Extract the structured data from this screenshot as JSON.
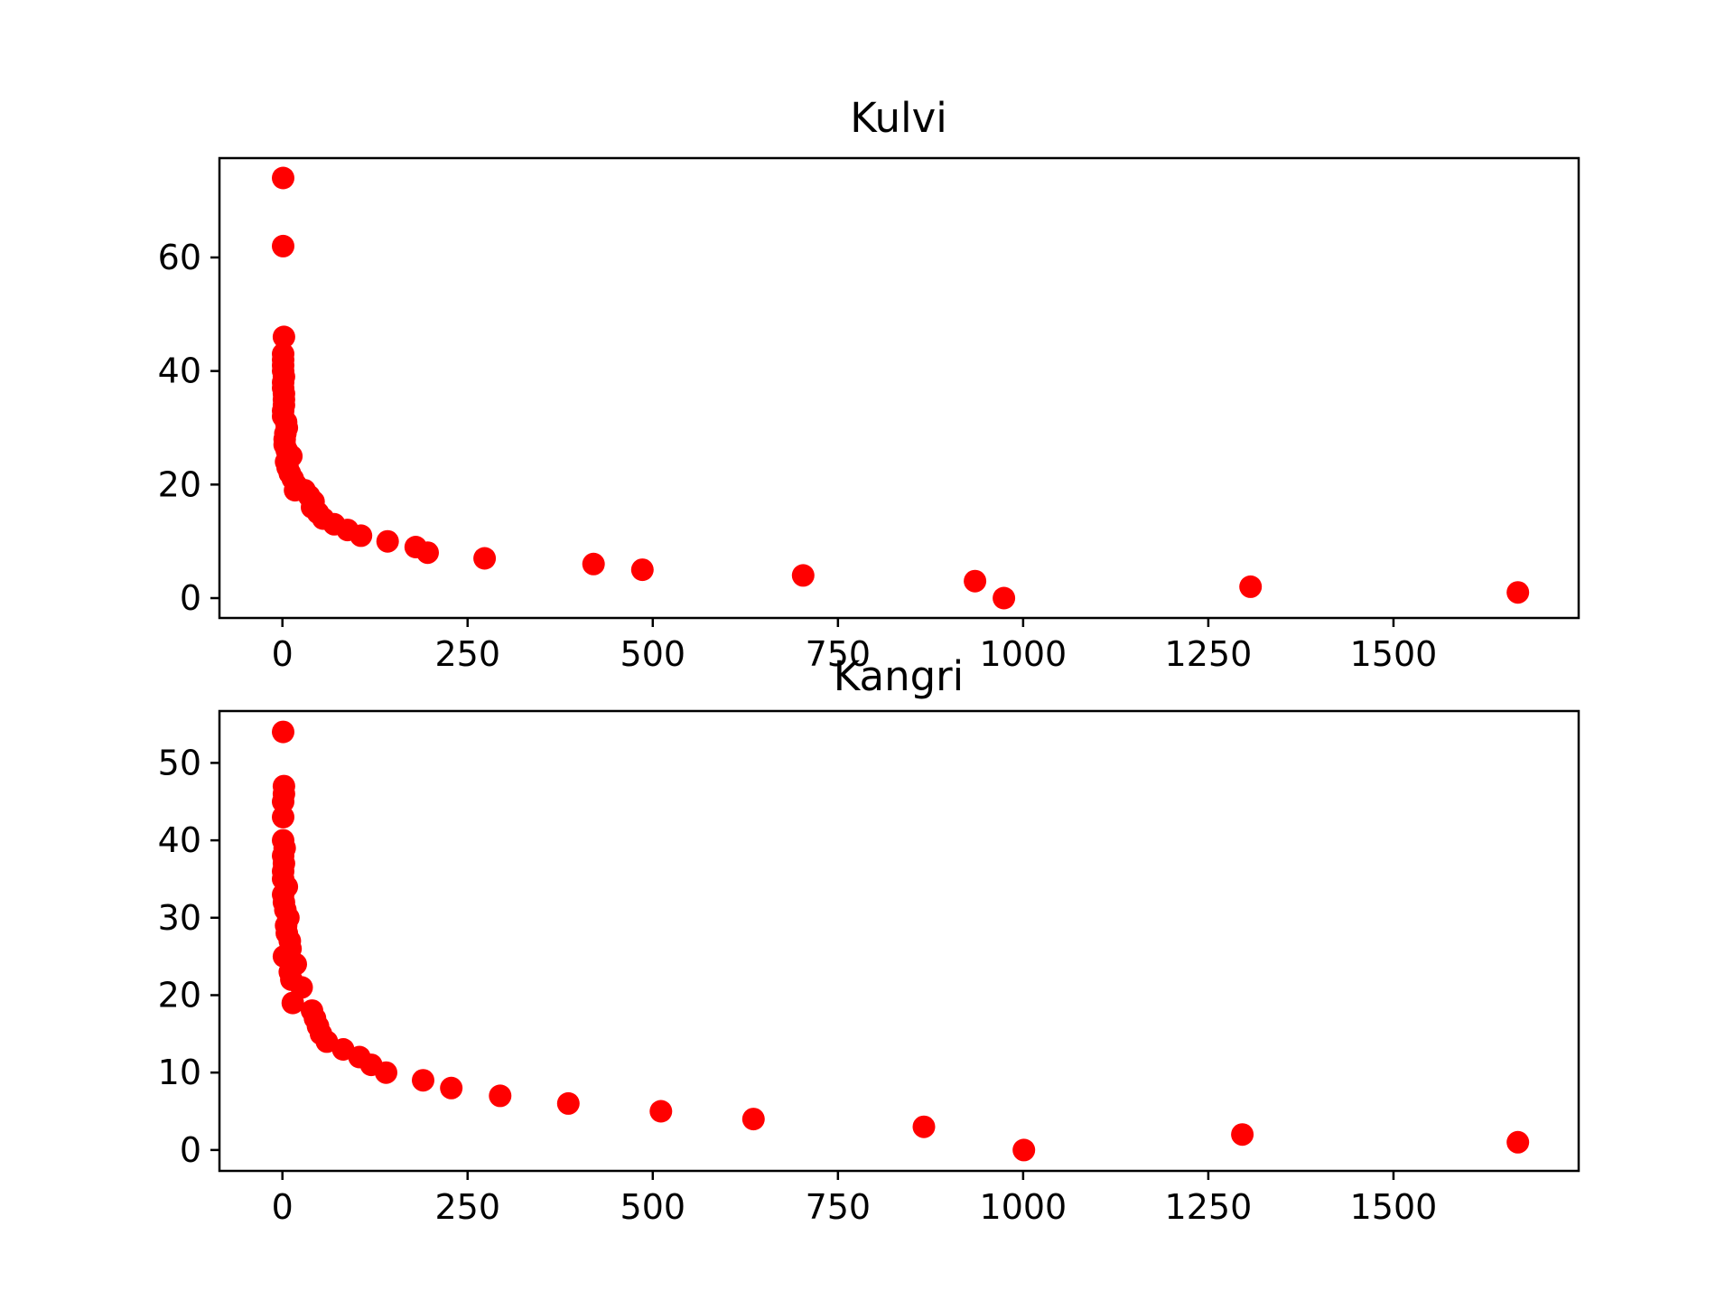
{
  "colors": {
    "marker": "#ff0000",
    "axes": "#000000",
    "background": "#ffffff"
  },
  "chart_data": [
    {
      "type": "scatter",
      "title": "Kulvi",
      "xlabel": "",
      "ylabel": "",
      "xlim": [
        -85,
        1750
      ],
      "ylim": [
        -3.5,
        77.5
      ],
      "xticks": [
        0,
        250,
        500,
        750,
        1000,
        1250,
        1500
      ],
      "yticks": [
        0,
        20,
        40,
        60
      ],
      "grid": false,
      "legend": "none",
      "series": [
        {
          "marker": "circle",
          "points": [
            [
              1,
              74
            ],
            [
              1,
              62
            ],
            [
              2,
              46
            ],
            [
              1,
              43
            ],
            [
              1,
              42
            ],
            [
              1,
              41
            ],
            [
              1,
              40
            ],
            [
              2,
              39
            ],
            [
              1,
              38
            ],
            [
              1,
              37
            ],
            [
              2,
              36
            ],
            [
              2,
              35
            ],
            [
              2,
              34
            ],
            [
              1,
              33
            ],
            [
              1,
              32
            ],
            [
              5,
              31
            ],
            [
              6,
              30
            ],
            [
              4,
              29
            ],
            [
              3,
              28
            ],
            [
              3,
              27
            ],
            [
              6,
              26
            ],
            [
              12,
              25
            ],
            [
              5,
              24
            ],
            [
              7,
              23
            ],
            [
              10,
              22
            ],
            [
              14,
              21
            ],
            [
              18,
              20
            ],
            [
              17,
              19
            ],
            [
              30,
              19
            ],
            [
              36,
              18
            ],
            [
              42,
              17
            ],
            [
              40,
              16
            ],
            [
              48,
              15
            ],
            [
              55,
              14
            ],
            [
              70,
              13
            ],
            [
              88,
              12
            ],
            [
              106,
              11
            ],
            [
              142,
              10
            ],
            [
              180,
              9
            ],
            [
              196,
              8
            ],
            [
              273,
              7
            ],
            [
              420,
              6
            ],
            [
              486,
              5
            ],
            [
              703,
              4
            ],
            [
              935,
              3
            ],
            [
              1307,
              2
            ],
            [
              1668,
              1
            ],
            [
              974,
              0
            ]
          ]
        }
      ]
    },
    {
      "type": "scatter",
      "title": "Kangri",
      "xlabel": "",
      "ylabel": "",
      "xlim": [
        -85,
        1750
      ],
      "ylim": [
        -2.7,
        56.7
      ],
      "xticks": [
        0,
        250,
        500,
        750,
        1000,
        1250,
        1500
      ],
      "yticks": [
        0,
        10,
        20,
        30,
        40,
        50
      ],
      "grid": false,
      "legend": "none",
      "series": [
        {
          "marker": "circle",
          "points": [
            [
              1,
              54
            ],
            [
              2,
              47
            ],
            [
              2,
              46
            ],
            [
              1,
              45
            ],
            [
              1,
              43
            ],
            [
              1,
              40
            ],
            [
              3,
              39
            ],
            [
              1,
              38
            ],
            [
              2,
              37
            ],
            [
              1,
              36
            ],
            [
              1,
              35
            ],
            [
              6,
              34
            ],
            [
              1,
              33
            ],
            [
              2,
              32
            ],
            [
              4,
              31
            ],
            [
              8,
              30
            ],
            [
              5,
              29
            ],
            [
              6,
              28
            ],
            [
              10,
              27
            ],
            [
              11,
              26
            ],
            [
              2,
              25
            ],
            [
              18,
              24
            ],
            [
              10,
              23
            ],
            [
              12,
              22
            ],
            [
              26,
              21
            ],
            [
              14,
              19
            ],
            [
              40,
              18
            ],
            [
              44,
              17
            ],
            [
              48,
              16
            ],
            [
              52,
              15
            ],
            [
              60,
              14
            ],
            [
              82,
              13
            ],
            [
              104,
              12
            ],
            [
              120,
              11
            ],
            [
              140,
              10
            ],
            [
              190,
              9
            ],
            [
              228,
              8
            ],
            [
              294,
              7
            ],
            [
              386,
              6
            ],
            [
              511,
              5
            ],
            [
              636,
              4
            ],
            [
              866,
              3
            ],
            [
              1296,
              2
            ],
            [
              1668,
              1
            ],
            [
              1001,
              0
            ]
          ]
        }
      ]
    }
  ]
}
